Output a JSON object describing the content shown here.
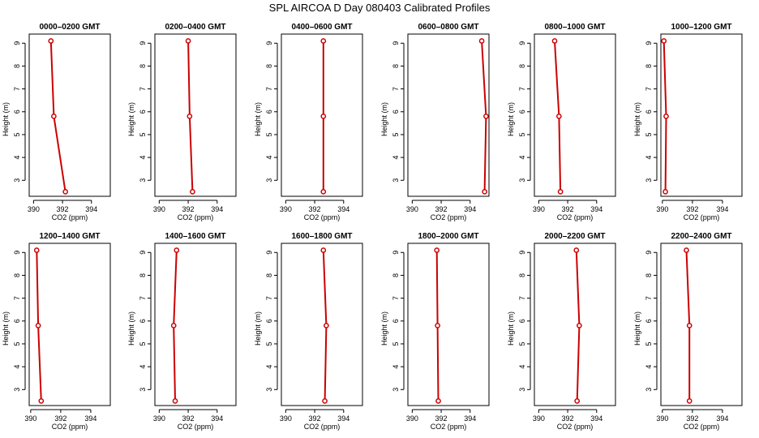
{
  "page": {
    "title": "SPL AIRCOA D  Day 080403  Calibrated Profiles"
  },
  "chart_data": [
    {
      "type": "line",
      "title": "0000–0200 GMT",
      "xlabel": "CO2 (ppm)",
      "ylabel": "Height (m)",
      "x": [
        391.2,
        391.4,
        392.2
      ],
      "y": [
        9.1,
        5.8,
        2.5
      ],
      "xlim": [
        389.7,
        395.3
      ],
      "ylim": [
        2.3,
        9.4
      ],
      "xticks": [
        "390",
        "392",
        "394"
      ],
      "yticks": [
        "3",
        "4",
        "5",
        "6",
        "7",
        "8",
        "9"
      ]
    },
    {
      "type": "line",
      "title": "0200–0400 GMT",
      "xlabel": "CO2 (ppm)",
      "ylabel": "Height (m)",
      "x": [
        392.0,
        392.1,
        392.3
      ],
      "y": [
        9.1,
        5.8,
        2.5
      ],
      "xlim": [
        389.7,
        395.3
      ],
      "ylim": [
        2.3,
        9.4
      ],
      "xticks": [
        "390",
        "392",
        "394"
      ],
      "yticks": [
        "3",
        "4",
        "5",
        "6",
        "7",
        "8",
        "9"
      ]
    },
    {
      "type": "line",
      "title": "0400–0600 GMT",
      "xlabel": "CO2 (ppm)",
      "ylabel": "Height (m)",
      "x": [
        392.6,
        392.6,
        392.6
      ],
      "y": [
        9.1,
        5.8,
        2.5
      ],
      "xlim": [
        389.7,
        395.3
      ],
      "ylim": [
        2.3,
        9.4
      ],
      "xticks": [
        "390",
        "392",
        "394"
      ],
      "yticks": [
        "3",
        "4",
        "5",
        "6",
        "7",
        "8",
        "9"
      ]
    },
    {
      "type": "line",
      "title": "0600–0800 GMT",
      "xlabel": "CO2 (ppm)",
      "ylabel": "Height (m)",
      "x": [
        394.8,
        395.1,
        395.0
      ],
      "y": [
        9.1,
        5.8,
        2.5
      ],
      "xlim": [
        389.7,
        395.3
      ],
      "ylim": [
        2.3,
        9.4
      ],
      "xticks": [
        "390",
        "392",
        "394"
      ],
      "yticks": [
        "3",
        "4",
        "5",
        "6",
        "7",
        "8",
        "9"
      ]
    },
    {
      "type": "line",
      "title": "0800–1000 GMT",
      "xlabel": "CO2 (ppm)",
      "ylabel": "Height (m)",
      "x": [
        391.1,
        391.4,
        391.5
      ],
      "y": [
        9.1,
        5.8,
        2.5
      ],
      "xlim": [
        389.7,
        395.3
      ],
      "ylim": [
        2.3,
        9.4
      ],
      "xticks": [
        "390",
        "392",
        "394"
      ],
      "yticks": [
        "3",
        "4",
        "5",
        "6",
        "7",
        "8",
        "9"
      ]
    },
    {
      "type": "line",
      "title": "1000–1200 GMT",
      "xlabel": "CO2 (ppm)",
      "ylabel": "Height (m)",
      "x": [
        390.1,
        390.25,
        390.2
      ],
      "y": [
        9.1,
        5.8,
        2.5
      ],
      "xlim": [
        389.9,
        395.3
      ],
      "ylim": [
        2.3,
        9.4
      ],
      "xticks": [
        "390",
        "392",
        "394"
      ],
      "yticks": [
        "3",
        "4",
        "5",
        "6",
        "7",
        "8",
        "9"
      ]
    },
    {
      "type": "line",
      "title": "1200–1400 GMT",
      "xlabel": "CO2 (ppm)",
      "ylabel": "Height (m)",
      "x": [
        390.4,
        390.5,
        390.7
      ],
      "y": [
        9.1,
        5.8,
        2.5
      ],
      "xlim": [
        389.9,
        395.3
      ],
      "ylim": [
        2.3,
        9.4
      ],
      "xticks": [
        "390",
        "392",
        "394"
      ],
      "yticks": [
        "3",
        "4",
        "5",
        "6",
        "7",
        "8",
        "9"
      ]
    },
    {
      "type": "line",
      "title": "1400–1600 GMT",
      "xlabel": "CO2 (ppm)",
      "ylabel": "Height (m)",
      "x": [
        391.2,
        391.0,
        391.1
      ],
      "y": [
        9.1,
        5.8,
        2.5
      ],
      "xlim": [
        389.7,
        395.3
      ],
      "ylim": [
        2.3,
        9.4
      ],
      "xticks": [
        "390",
        "392",
        "394"
      ],
      "yticks": [
        "3",
        "4",
        "5",
        "6",
        "7",
        "8",
        "9"
      ]
    },
    {
      "type": "line",
      "title": "1600–1800 GMT",
      "xlabel": "CO2 (ppm)",
      "ylabel": "Height (m)",
      "x": [
        392.6,
        392.8,
        392.7
      ],
      "y": [
        9.1,
        5.8,
        2.5
      ],
      "xlim": [
        389.7,
        395.3
      ],
      "ylim": [
        2.3,
        9.4
      ],
      "xticks": [
        "390",
        "392",
        "394"
      ],
      "yticks": [
        "3",
        "4",
        "5",
        "6",
        "7",
        "8",
        "9"
      ]
    },
    {
      "type": "line",
      "title": "1800–2000 GMT",
      "xlabel": "CO2 (ppm)",
      "ylabel": "Height (m)",
      "x": [
        391.7,
        391.75,
        391.8
      ],
      "y": [
        9.1,
        5.8,
        2.5
      ],
      "xlim": [
        389.7,
        395.3
      ],
      "ylim": [
        2.3,
        9.4
      ],
      "xticks": [
        "390",
        "392",
        "394"
      ],
      "yticks": [
        "3",
        "4",
        "5",
        "6",
        "7",
        "8",
        "9"
      ]
    },
    {
      "type": "line",
      "title": "2000–2200 GMT",
      "xlabel": "CO2 (ppm)",
      "ylabel": "Height (m)",
      "x": [
        392.6,
        392.8,
        392.65
      ],
      "y": [
        9.1,
        5.8,
        2.5
      ],
      "xlim": [
        389.7,
        395.3
      ],
      "ylim": [
        2.3,
        9.4
      ],
      "xticks": [
        "390",
        "392",
        "394"
      ],
      "yticks": [
        "3",
        "4",
        "5",
        "6",
        "7",
        "8",
        "9"
      ]
    },
    {
      "type": "line",
      "title": "2200–2400 GMT",
      "xlabel": "CO2 (ppm)",
      "ylabel": "Height (m)",
      "x": [
        391.6,
        391.8,
        391.8
      ],
      "y": [
        9.1,
        5.8,
        2.5
      ],
      "xlim": [
        389.9,
        395.3
      ],
      "ylim": [
        2.3,
        9.4
      ],
      "xticks": [
        "390",
        "392",
        "394"
      ],
      "yticks": [
        "3",
        "4",
        "5",
        "6",
        "7",
        "8",
        "9"
      ]
    }
  ]
}
